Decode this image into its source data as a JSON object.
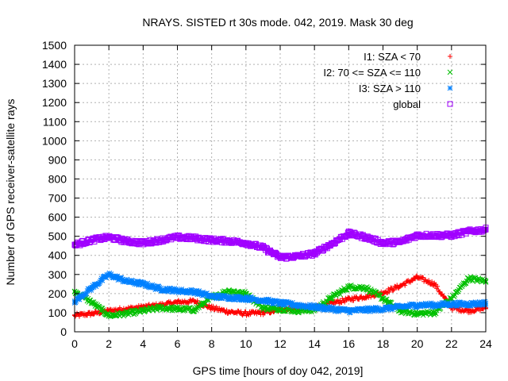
{
  "chart_data": {
    "type": "scatter",
    "title": "NRAYS. SISTED rt 30s mode. 042, 2019. Mask 30 deg",
    "xlabel": "GPS time [hours of doy 042, 2019]",
    "ylabel": "Number of GPS receiver-satellite rays",
    "xlim": [
      0,
      24
    ],
    "ylim": [
      0,
      1500
    ],
    "xticks": [
      0,
      2,
      4,
      6,
      8,
      10,
      12,
      14,
      16,
      18,
      20,
      22,
      24
    ],
    "yticks": [
      0,
      100,
      200,
      300,
      400,
      500,
      600,
      700,
      800,
      900,
      1000,
      1100,
      1200,
      1300,
      1400,
      1500
    ],
    "grid": true,
    "legend_position": "top-right",
    "series": [
      {
        "name": "I1: SZA < 70",
        "marker": "+",
        "color": "#ff0000",
        "x": [
          0,
          1,
          2,
          3,
          4,
          5,
          6,
          7,
          8,
          9,
          10,
          11,
          12,
          13,
          14,
          15,
          16,
          17,
          18,
          19,
          20,
          21,
          22,
          23,
          24
        ],
        "y": [
          85,
          95,
          110,
          120,
          130,
          140,
          155,
          160,
          125,
          105,
          95,
          100,
          115,
          125,
          130,
          150,
          170,
          185,
          205,
          240,
          285,
          250,
          125,
          110,
          125
        ]
      },
      {
        "name": "I2: 70 <= SZA <= 110",
        "marker": "x",
        "color": "#00c000",
        "x": [
          0,
          1,
          2,
          3,
          4,
          5,
          6,
          7,
          8,
          9,
          10,
          11,
          12,
          13,
          14,
          15,
          16,
          17,
          18,
          19,
          20,
          21,
          22,
          23,
          24
        ],
        "y": [
          210,
          155,
          85,
          95,
          110,
          125,
          120,
          115,
          180,
          215,
          200,
          125,
          120,
          110,
          115,
          180,
          235,
          230,
          175,
          110,
          95,
          100,
          175,
          280,
          265
        ]
      },
      {
        "name": "I3: SZA > 110",
        "marker": "*",
        "color": "#0080ff",
        "x": [
          0,
          1,
          2,
          3,
          4,
          5,
          6,
          7,
          8,
          9,
          10,
          11,
          12,
          13,
          14,
          15,
          16,
          17,
          18,
          19,
          20,
          21,
          22,
          23,
          24
        ],
        "y": [
          160,
          230,
          300,
          265,
          250,
          225,
          215,
          210,
          185,
          180,
          175,
          165,
          150,
          140,
          130,
          120,
          110,
          115,
          120,
          130,
          140,
          140,
          145,
          145,
          150
        ]
      },
      {
        "name": "global",
        "marker": "square",
        "color": "#a000ff",
        "x": [
          0,
          1,
          2,
          3,
          4,
          5,
          6,
          7,
          8,
          9,
          10,
          11,
          12,
          13,
          14,
          15,
          16,
          17,
          18,
          19,
          20,
          21,
          22,
          23,
          24
        ],
        "y": [
          455,
          480,
          495,
          475,
          465,
          480,
          495,
          490,
          480,
          475,
          465,
          440,
          390,
          395,
          410,
          460,
          515,
          495,
          465,
          470,
          505,
          505,
          505,
          525,
          535
        ]
      }
    ]
  }
}
